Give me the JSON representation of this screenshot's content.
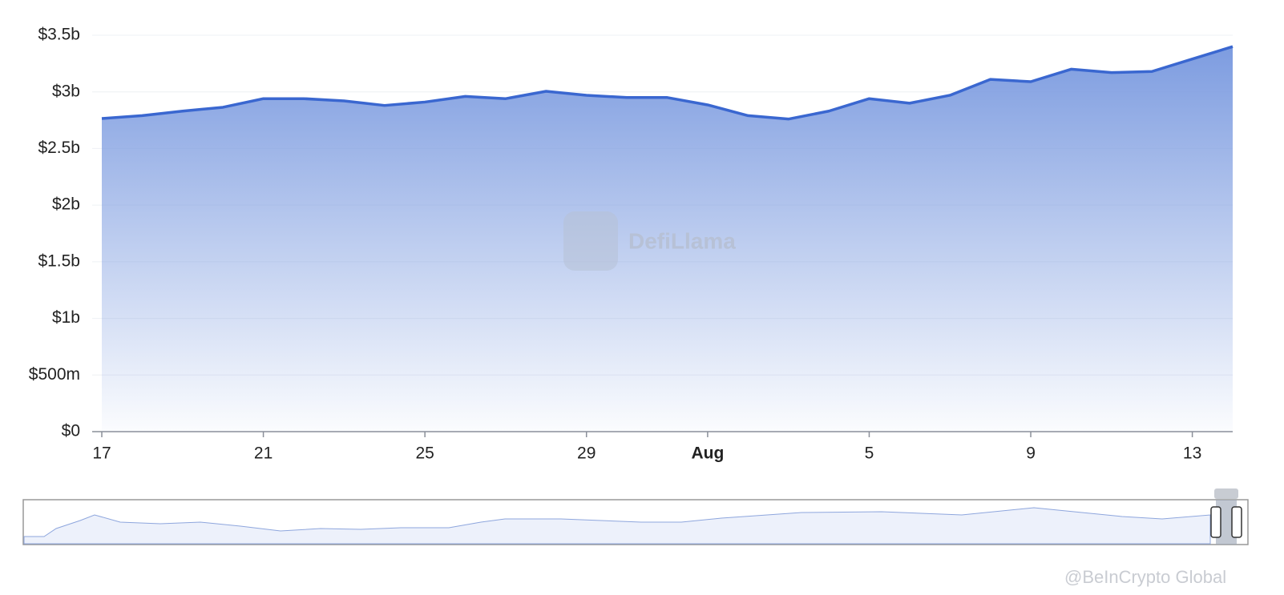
{
  "chart_data": {
    "type": "area",
    "x": [
      "07-17",
      "07-18",
      "07-19",
      "07-20",
      "07-21",
      "07-22",
      "07-23",
      "07-24",
      "07-25",
      "07-26",
      "07-27",
      "07-28",
      "07-29",
      "07-30",
      "07-31",
      "08-01",
      "08-02",
      "08-03",
      "08-04",
      "08-05",
      "08-06",
      "08-07",
      "08-08",
      "08-09",
      "08-10",
      "08-11",
      "08-12",
      "08-13",
      "08-14"
    ],
    "series": [
      {
        "color": "#3a67d0",
        "values": [
          2765000000,
          2790000000,
          2830000000,
          2864000000,
          2940000000,
          2940000000,
          2920000000,
          2880000000,
          2910000000,
          2960000000,
          2940000000,
          3005000000,
          2970000000,
          2950000000,
          2950000000,
          2885000000,
          2790000000,
          2760000000,
          2830000000,
          2940000000,
          2900000000,
          2970000000,
          3110000000,
          3090000000,
          3200000000,
          3170000000,
          3180000000,
          3290000000,
          3400000000
        ]
      }
    ],
    "ylim": [
      0,
      3500000000
    ],
    "yticks": [
      {
        "value": 0,
        "label": "$0"
      },
      {
        "value": 500000000,
        "label": "$500m"
      },
      {
        "value": 1000000000,
        "label": "$1b"
      },
      {
        "value": 1500000000,
        "label": "$1.5b"
      },
      {
        "value": 2000000000,
        "label": "$2b"
      },
      {
        "value": 2500000000,
        "label": "$2.5b"
      },
      {
        "value": 3000000000,
        "label": "$3b"
      },
      {
        "value": 3500000000,
        "label": "$3.5b"
      }
    ],
    "xticks": [
      {
        "value": "07-17",
        "label": "17"
      },
      {
        "value": "07-21",
        "label": "21"
      },
      {
        "value": "07-25",
        "label": "25"
      },
      {
        "value": "07-29",
        "label": "29"
      },
      {
        "value": "08-01",
        "label": "Aug"
      },
      {
        "value": "08-05",
        "label": "5"
      },
      {
        "value": "08-09",
        "label": "9"
      },
      {
        "value": "08-13",
        "label": "13"
      }
    ],
    "grid": true,
    "watermarks": [
      "DefiLlama",
      "@BeInCrypto Global"
    ]
  }
}
